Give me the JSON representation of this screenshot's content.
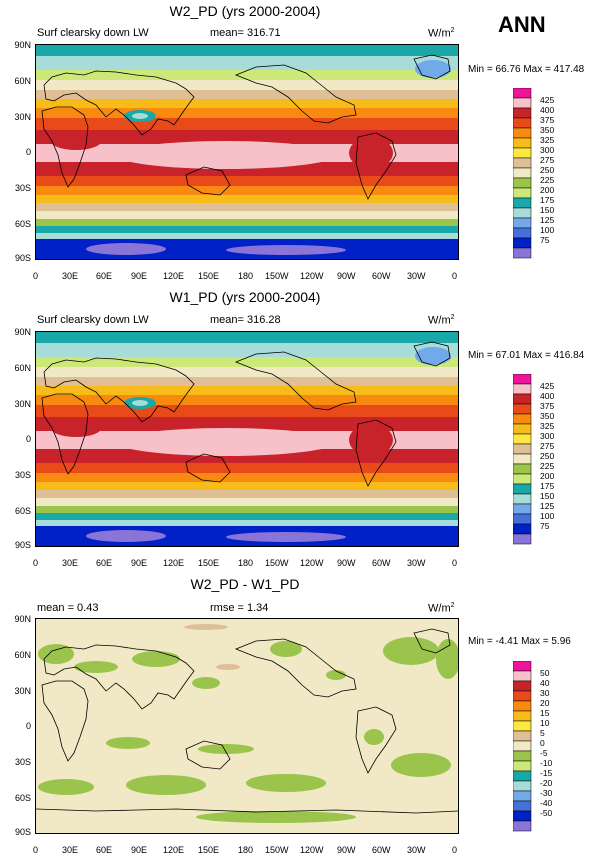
{
  "season": "ANN",
  "x_ticks": [
    "0",
    "30E",
    "60E",
    "90E",
    "120E",
    "150E",
    "180",
    "150W",
    "120W",
    "90W",
    "60W",
    "30W",
    "0"
  ],
  "y_ticks": [
    "90N",
    "60N",
    "30N",
    "0",
    "30S",
    "60S",
    "90S"
  ],
  "panels": [
    {
      "title": "W2_PD (yrs 2000-2004)",
      "left_label": "Surf clearsky down LW",
      "stat_label": "mean= 316.71",
      "units": "W/m",
      "units_sup": "2",
      "minmax": "Min =  66.76 Max = 417.48",
      "colorbar": {
        "levels": [
          "425",
          "400",
          "375",
          "350",
          "325",
          "300",
          "275",
          "250",
          "225",
          "200",
          "175",
          "150",
          "125",
          "100",
          "75"
        ],
        "colors": [
          "#f0139b",
          "#f8c0c8",
          "#c8232a",
          "#e84a1a",
          "#f88a10",
          "#f8bc1a",
          "#fce840",
          "#dfbf96",
          "#f1e8c5",
          "#9ac44c",
          "#cbe878",
          "#1aa7a7",
          "#a7dcd8",
          "#72a9e9",
          "#4470d8",
          "#0020c8",
          "#8a74d8"
        ]
      }
    },
    {
      "title": "W1_PD (yrs 2000-2004)",
      "left_label": "Surf clearsky down LW",
      "stat_label": "mean= 316.28",
      "units": "W/m",
      "units_sup": "2",
      "minmax": "Min =  67.01 Max = 416.84",
      "colorbar": {
        "levels": [
          "425",
          "400",
          "375",
          "350",
          "325",
          "300",
          "275",
          "250",
          "225",
          "200",
          "175",
          "150",
          "125",
          "100",
          "75"
        ],
        "colors": [
          "#f0139b",
          "#f8c0c8",
          "#c8232a",
          "#e84a1a",
          "#f88a10",
          "#f8bc1a",
          "#fce840",
          "#dfbf96",
          "#f1e8c5",
          "#9ac44c",
          "#cbe878",
          "#1aa7a7",
          "#a7dcd8",
          "#72a9e9",
          "#4470d8",
          "#0020c8",
          "#8a74d8"
        ]
      }
    },
    {
      "title": "W2_PD - W1_PD",
      "left_label": "mean =   0.43",
      "stat_label": "rmse =   1.34",
      "units": "W/m",
      "units_sup": "2",
      "minmax": "Min =  -4.41 Max =   5.96",
      "colorbar": {
        "levels": [
          "50",
          "40",
          "30",
          "20",
          "15",
          "10",
          "5",
          "0",
          "-5",
          "-10",
          "-15",
          "-20",
          "-30",
          "-40",
          "-50"
        ],
        "colors": [
          "#f0139b",
          "#f8c0c8",
          "#c8232a",
          "#e84a1a",
          "#f88a10",
          "#f8bc1a",
          "#fce840",
          "#dfbf96",
          "#f1e8c5",
          "#9ac44c",
          "#cbe878",
          "#1aa7a7",
          "#a7dcd8",
          "#72a9e9",
          "#4470d8",
          "#0020c8",
          "#8a74d8"
        ]
      }
    }
  ]
}
